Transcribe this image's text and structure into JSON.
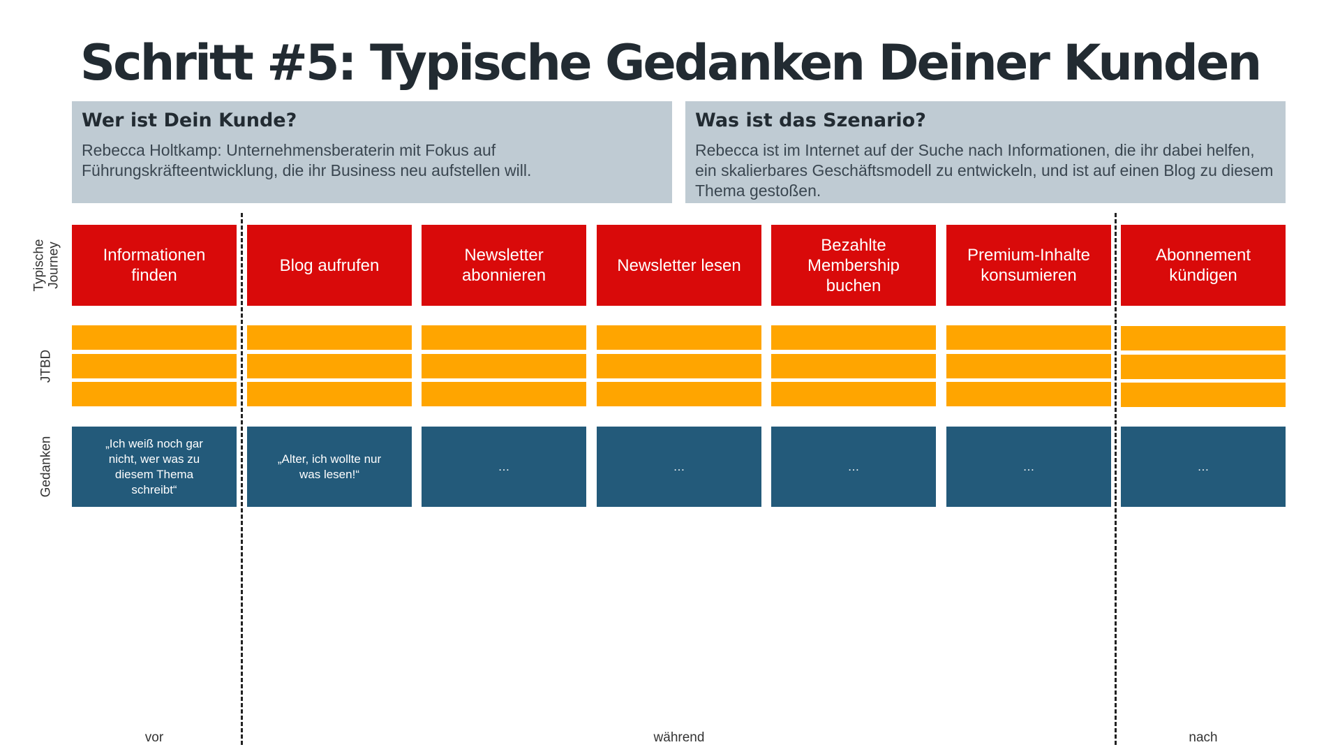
{
  "title": "Schritt #5: Typische Gedanken Deiner Kunden",
  "customer": {
    "heading": "Wer ist Dein Kunde?",
    "text": "Rebecca Holtkamp: Unternehmensberaterin mit Fokus auf Führungskräfteentwicklung, die ihr Business neu aufstellen will."
  },
  "scenario": {
    "heading": "Was ist das Szenario?",
    "text": "Rebecca ist im Internet auf der Suche nach Informationen, die ihr dabei helfen, ein skalierbares Geschäftsmodell zu entwickeln, und ist auf einen Blog zu diesem Thema gestoßen."
  },
  "row_labels": {
    "journey": "Typische\nJourney",
    "jtbd": "JTBD",
    "thoughts": "Gedanken"
  },
  "steps": [
    "Informationen finden",
    "Blog aufrufen",
    "Newsletter abonnieren",
    "Newsletter lesen",
    "Bezahlte Membership buchen",
    "Premium-Inhalte konsumieren",
    "Abonnement kündigen"
  ],
  "thoughts": [
    "„Ich weiß noch gar nicht, wer was zu diesem Thema schreibt“",
    "„Alter, ich wollte nur was lesen!“",
    "…",
    "…",
    "…",
    "…",
    "…"
  ],
  "phases": {
    "before": "vor",
    "during": "während",
    "after": "nach"
  },
  "colors": {
    "journey": "#d90a0a",
    "jtbd": "#ffa500",
    "thoughts": "#235a7a",
    "infobox": "#bfcbd3"
  }
}
